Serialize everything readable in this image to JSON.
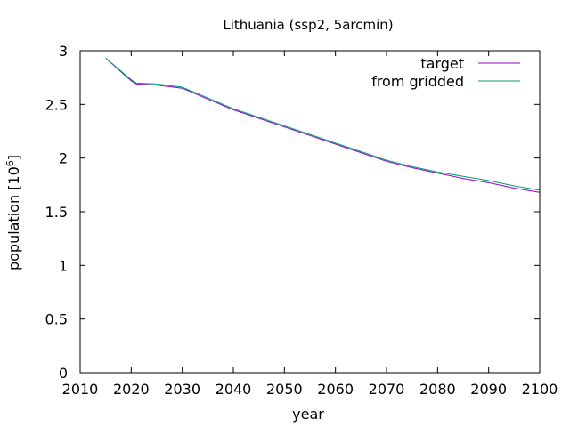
{
  "chart_data": {
    "type": "line",
    "title": "Lithuania (ssp2, 5arcmin)",
    "xlabel": "year",
    "ylabel_main": "population [10",
    "ylabel_sup": "6",
    "ylabel_close": "]",
    "xlim": [
      2010,
      2100
    ],
    "ylim": [
      0,
      3
    ],
    "xticks": [
      "2010",
      "2020",
      "2030",
      "2040",
      "2050",
      "2060",
      "2070",
      "2080",
      "2090",
      "2100"
    ],
    "yticks": [
      "0",
      "0.5",
      "1",
      "1.5",
      "2",
      "2.5",
      "3"
    ],
    "grid": false,
    "legend_position": "top-right",
    "series": [
      {
        "name": "target",
        "color": "#9400d3",
        "x": [
          2015,
          2020,
          2021,
          2025,
          2030,
          2035,
          2040,
          2045,
          2050,
          2055,
          2060,
          2065,
          2070,
          2075,
          2080,
          2085,
          2090,
          2095,
          2100
        ],
        "y": [
          2.93,
          2.72,
          2.69,
          2.68,
          2.65,
          2.55,
          2.45,
          2.37,
          2.29,
          2.21,
          2.13,
          2.05,
          1.97,
          1.91,
          1.86,
          1.81,
          1.77,
          1.72,
          1.68
        ]
      },
      {
        "name": "from gridded",
        "color": "#009e73",
        "x": [
          2015,
          2020,
          2021,
          2025,
          2030,
          2035,
          2040,
          2045,
          2050,
          2055,
          2060,
          2065,
          2070,
          2075,
          2080,
          2085,
          2090,
          2095,
          2100
        ],
        "y": [
          2.93,
          2.73,
          2.7,
          2.69,
          2.66,
          2.56,
          2.46,
          2.38,
          2.3,
          2.22,
          2.14,
          2.06,
          1.98,
          1.92,
          1.87,
          1.83,
          1.79,
          1.74,
          1.7
        ]
      }
    ]
  }
}
